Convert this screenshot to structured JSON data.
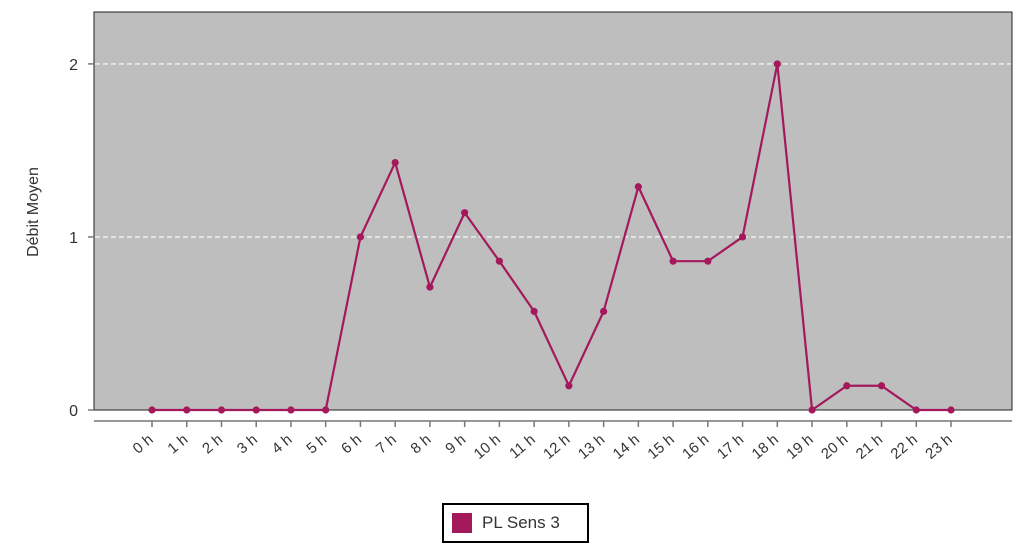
{
  "chart_data": {
    "type": "line",
    "xlabel": "",
    "ylabel": "Débit Moyen",
    "categories": [
      "0 h",
      "1 h",
      "2 h",
      "3 h",
      "4 h",
      "5 h",
      "6 h",
      "7 h",
      "8 h",
      "9 h",
      "10 h",
      "11 h",
      "12 h",
      "13 h",
      "14 h",
      "15 h",
      "16 h",
      "17 h",
      "18 h",
      "19 h",
      "20 h",
      "21 h",
      "22 h",
      "23 h"
    ],
    "series": [
      {
        "name": "PL Sens 3",
        "color": "#A3195B",
        "values": [
          0,
          0,
          0,
          0,
          0,
          0,
          1.0,
          1.43,
          0.71,
          1.14,
          0.86,
          0.57,
          0.14,
          0.57,
          1.29,
          0.86,
          0.86,
          1.0,
          2.0,
          0,
          0.14,
          0.14,
          0,
          0
        ]
      }
    ],
    "ylim": [
      0,
      2.3
    ],
    "yticks": [
      0,
      1,
      2
    ],
    "grid": true,
    "legend_position": "bottom",
    "colors": {
      "panel_background": "#BEBEBE",
      "gridline": "#FFFFFF",
      "series": "#A3195B"
    }
  }
}
